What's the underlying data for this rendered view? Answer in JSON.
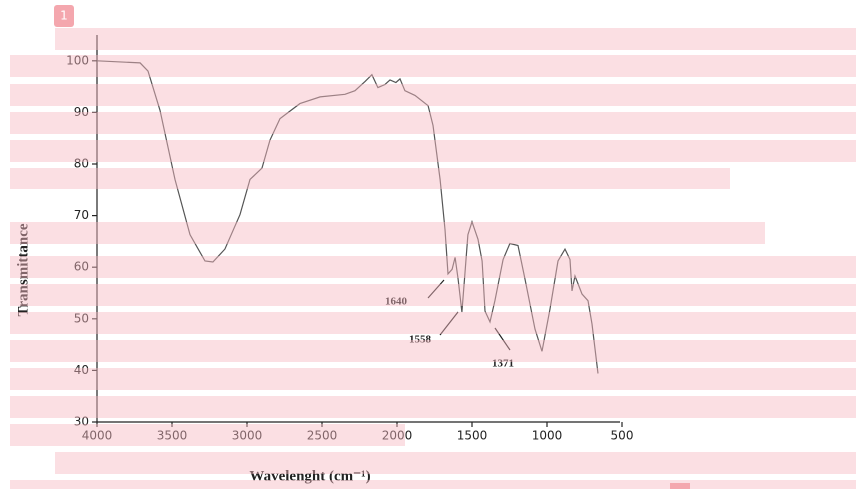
{
  "marker_label": "1",
  "chart_data": {
    "type": "line",
    "x_label": "Wavelenght (cm⁻¹)",
    "y_label": "Transmittance",
    "xlim": [
      4000,
      500
    ],
    "ylim": [
      30,
      105
    ],
    "xticks": [
      4000,
      3500,
      3000,
      2500,
      2000,
      1500,
      1000,
      500
    ],
    "yticks": [
      30,
      40,
      50,
      60,
      70,
      80,
      90,
      100
    ],
    "annotations": [
      "1640",
      "1558",
      "1371"
    ],
    "series": [
      {
        "color": "#555555",
        "x": [
          4000,
          3713,
          3660,
          3580,
          3480,
          3380,
          3280,
          3227,
          3147,
          3047,
          2980,
          2900,
          2847,
          2780,
          2647,
          2513,
          2347,
          2280,
          2213,
          2167,
          2127,
          2080,
          2047,
          2007,
          1980,
          1947,
          1880,
          1793,
          1760,
          1713,
          1680,
          1660,
          1633,
          1613,
          1593,
          1567,
          1547,
          1527,
          1500,
          1460,
          1433,
          1413,
          1380,
          1347,
          1293,
          1247,
          1193,
          1147,
          1080,
          1033,
          980,
          927,
          880,
          847,
          833,
          813,
          767,
          727,
          700,
          660
        ],
        "values": [
          100,
          99.6,
          98,
          90.4,
          77,
          66.3,
          61.2,
          61,
          63.5,
          70.2,
          77,
          79.2,
          84.6,
          88.8,
          91.7,
          93,
          93.5,
          94.2,
          96,
          97.3,
          94.8,
          95.4,
          96.3,
          95.8,
          96.5,
          94.2,
          93.3,
          91.3,
          87.5,
          77,
          67.3,
          58.7,
          59.6,
          61.9,
          57.7,
          51.3,
          58.7,
          66.3,
          68.8,
          65.4,
          61.2,
          51.5,
          49.4,
          53.5,
          61.5,
          64.6,
          64.2,
          57.7,
          48,
          43.7,
          51.9,
          61.2,
          63.5,
          61.5,
          55.4,
          58.3,
          54.8,
          53.5,
          49,
          39.4
        ]
      }
    ]
  }
}
